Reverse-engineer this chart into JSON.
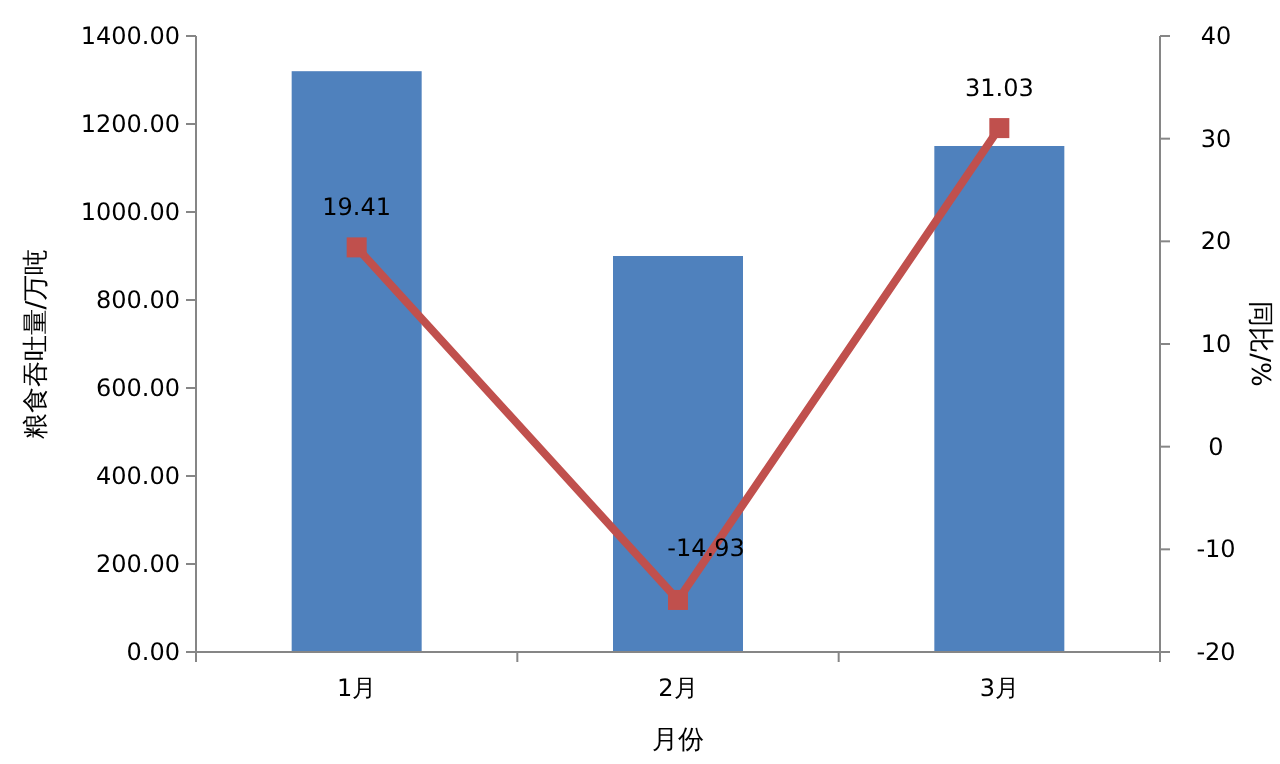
{
  "chart_data": {
    "type": "bar",
    "xlabel": "月份",
    "ylabel": "粮食吞吐量/万吨",
    "y2label": "同比/%",
    "categories": [
      "1月",
      "2月",
      "3月"
    ],
    "series": [
      {
        "color": "#4f81bd",
        "values": [
          1320,
          900,
          1150
        ]
      },
      {
        "type": "line",
        "axis": "y2",
        "color": "#c0504d",
        "marker": "square",
        "values": [
          19.41,
          -14.93,
          31.03
        ],
        "value_labels": [
          "19.41",
          "-14.93",
          "31.03"
        ]
      }
    ],
    "ylim": [
      0,
      1400
    ],
    "yticks": [
      {
        "value": 0,
        "label": "0.00"
      },
      {
        "value": 200,
        "label": "200.00"
      },
      {
        "value": 400,
        "label": "400.00"
      },
      {
        "value": 600,
        "label": "600.00"
      },
      {
        "value": 800,
        "label": "800.00"
      },
      {
        "value": 1000,
        "label": "1000.00"
      },
      {
        "value": 1200,
        "label": "1200.00"
      },
      {
        "value": 1400,
        "label": "1400.00"
      }
    ],
    "y2lim": [
      -20,
      40
    ],
    "y2ticks": [
      -20,
      -10,
      0,
      10,
      20,
      30,
      40
    ],
    "grid": false
  }
}
